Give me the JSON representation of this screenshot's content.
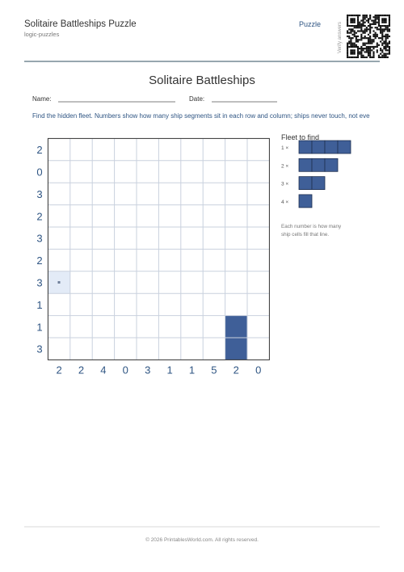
{
  "header": {
    "title": "Solitaire Battleships Puzzle",
    "subtitle": "logic-puzzles",
    "tag": "Puzzle",
    "qr_label": "Verify answers"
  },
  "puzzle": {
    "title": "Solitaire Battleships",
    "name_label": "Name:",
    "date_label": "Date:",
    "instructions": "Find the hidden fleet. Numbers show how many ship segments sit in each row and column; ships never touch, not eve",
    "row_clues": [
      2,
      0,
      3,
      2,
      3,
      2,
      3,
      1,
      1,
      3
    ],
    "col_clues": [
      2,
      2,
      4,
      0,
      3,
      1,
      1,
      5,
      2,
      0
    ]
  },
  "fleet": {
    "title": "Fleet to find",
    "items": [
      "1 ×",
      "2 ×",
      "3 ×",
      "4 ×"
    ],
    "note": [
      "Each number is how many",
      "ship cells fill that line."
    ]
  },
  "footer": "© 2026 PrintablesWorld.com. All rights reserved."
}
